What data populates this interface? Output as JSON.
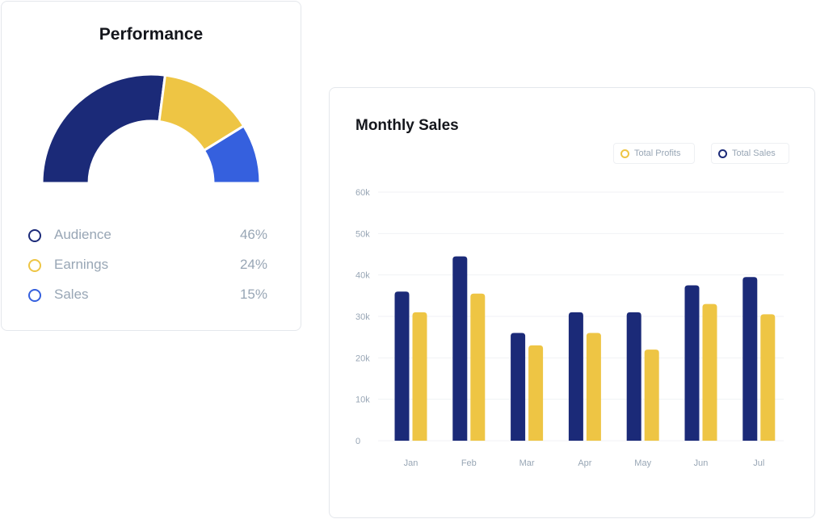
{
  "performance": {
    "title": "Performance",
    "legend": [
      {
        "label": "Audience",
        "value": "46%",
        "color": "#1b2a78"
      },
      {
        "label": "Earnings",
        "value": "24%",
        "color": "#eec544"
      },
      {
        "label": "Sales",
        "value": "15%",
        "color": "#3560de"
      }
    ]
  },
  "monthly_sales": {
    "title": "Monthly Sales",
    "legend": [
      {
        "label": "Total Profits",
        "color": "#eec544"
      },
      {
        "label": "Total Sales",
        "color": "#1b2a78"
      }
    ]
  },
  "chart_data": [
    {
      "type": "pie",
      "title": "Performance",
      "labels": [
        "Audience",
        "Earnings",
        "Sales"
      ],
      "values": [
        46,
        24,
        15
      ],
      "colors": [
        "#1b2a78",
        "#eec544",
        "#3560de"
      ],
      "legend_position": "bottom"
    },
    {
      "type": "bar",
      "title": "Monthly Sales",
      "categories": [
        "Jan",
        "Feb",
        "Mar",
        "Apr",
        "May",
        "Jun",
        "Jul"
      ],
      "series": [
        {
          "name": "Total Sales",
          "color": "#1b2a78",
          "values": [
            36000,
            44500,
            26000,
            31000,
            31000,
            37500,
            39500
          ]
        },
        {
          "name": "Total Profits",
          "color": "#eec544",
          "values": [
            31000,
            35500,
            23000,
            26000,
            22000,
            33000,
            30500
          ]
        }
      ],
      "yticks": [
        "0",
        "10k",
        "20k",
        "30k",
        "40k",
        "50k",
        "60k"
      ],
      "ylim": [
        0,
        60000
      ],
      "grid": true,
      "legend_position": "top-right",
      "xlabel": "",
      "ylabel": ""
    }
  ]
}
